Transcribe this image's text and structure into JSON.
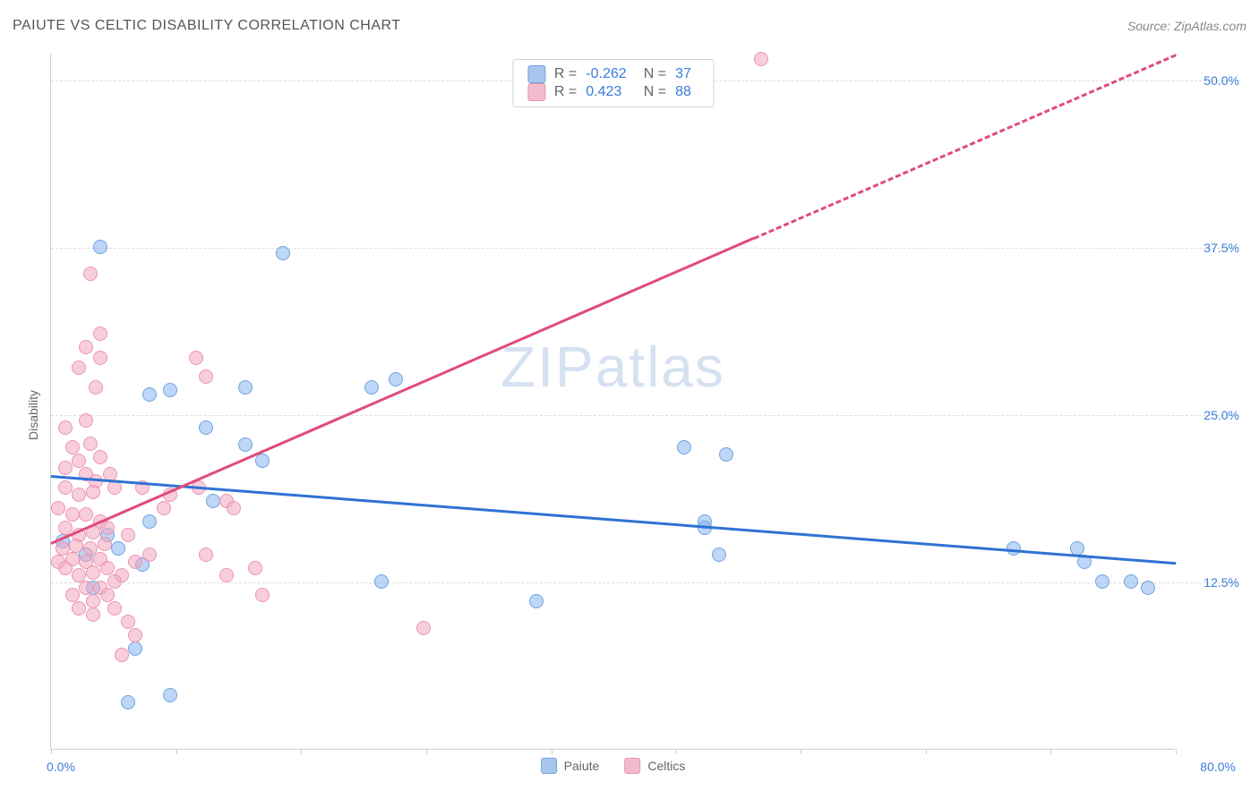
{
  "title": "PAIUTE VS CELTIC DISABILITY CORRELATION CHART",
  "source": "Source: ZipAtlas.com",
  "ylabel": "Disability",
  "watermark_a": "ZIP",
  "watermark_b": "atlas",
  "chart": {
    "xlim": [
      0,
      80
    ],
    "ylim": [
      0,
      52
    ],
    "x_ticks": [
      0,
      8.9,
      17.8,
      26.7,
      35.6,
      44.4,
      53.3,
      62.2,
      71.1,
      80
    ],
    "x_min_label": "0.0%",
    "x_max_label": "80.0%",
    "y_ticks": [
      {
        "v": 12.5,
        "label": "12.5%"
      },
      {
        "v": 25.0,
        "label": "25.0%"
      },
      {
        "v": 37.5,
        "label": "37.5%"
      },
      {
        "v": 50.0,
        "label": "50.0%"
      }
    ],
    "grid_color": "#dddddd",
    "axis_color": "#cccccc",
    "background_color": "#ffffff"
  },
  "series": [
    {
      "name": "Paiute",
      "color_fill": "rgba(137,180,240,0.55)",
      "color_stroke": "#6fa3e0",
      "swatch_fill": "#a8c6ed",
      "swatch_stroke": "#6fa3e0",
      "marker_radius": 8,
      "stroke_width": 1.5,
      "r_value": "-0.262",
      "n_value": "37",
      "trend": {
        "x1": 0,
        "y1": 20.5,
        "x2": 80,
        "y2": 14.0,
        "color": "#2f72d4",
        "width": 3,
        "solid_until_x": 80
      },
      "points": [
        [
          3.5,
          37.5
        ],
        [
          16.5,
          37.0
        ],
        [
          7,
          26.5
        ],
        [
          8.5,
          26.8
        ],
        [
          13.8,
          27.0
        ],
        [
          13.8,
          22.7
        ],
        [
          11.0,
          24.0
        ],
        [
          22.8,
          27.0
        ],
        [
          15.0,
          21.5
        ],
        [
          7.0,
          17.0
        ],
        [
          11.5,
          18.5
        ],
        [
          2.5,
          14.5
        ],
        [
          4.0,
          16.0
        ],
        [
          4.8,
          15.0
        ],
        [
          0.8,
          15.5
        ],
        [
          6.5,
          13.8
        ],
        [
          3.0,
          12.0
        ],
        [
          6.0,
          7.5
        ],
        [
          8.5,
          4.0
        ],
        [
          5.5,
          3.5
        ],
        [
          23.5,
          12.5
        ],
        [
          24.5,
          27.6
        ],
        [
          34.5,
          11.0
        ],
        [
          45.0,
          22.5
        ],
        [
          46.5,
          17.0
        ],
        [
          46.5,
          16.5
        ],
        [
          47.5,
          14.5
        ],
        [
          48.0,
          22.0
        ],
        [
          68.5,
          15.0
        ],
        [
          73.0,
          15.0
        ],
        [
          73.5,
          14.0
        ],
        [
          74.8,
          12.5
        ],
        [
          76.8,
          12.5
        ],
        [
          78.0,
          12.0
        ]
      ]
    },
    {
      "name": "Celtics",
      "color_fill": "rgba(244,166,189,0.55)",
      "color_stroke": "#e995b2",
      "swatch_fill": "#f3bccc",
      "swatch_stroke": "#e995b2",
      "marker_radius": 8,
      "stroke_width": 1.5,
      "r_value": "0.423",
      "n_value": "88",
      "trend": {
        "x1": 0,
        "y1": 15.5,
        "x2": 80,
        "y2": 52.0,
        "color": "#e14a7a",
        "width": 3,
        "solid_until_x": 50
      },
      "points": [
        [
          2.8,
          35.5
        ],
        [
          3.5,
          31.0
        ],
        [
          2.5,
          30.0
        ],
        [
          3.5,
          29.2
        ],
        [
          10.3,
          29.2
        ],
        [
          2.0,
          28.5
        ],
        [
          3.2,
          27.0
        ],
        [
          11.0,
          27.8
        ],
        [
          2.5,
          24.5
        ],
        [
          1.0,
          24.0
        ],
        [
          1.5,
          22.5
        ],
        [
          2.8,
          22.8
        ],
        [
          1.0,
          21.0
        ],
        [
          2.0,
          21.5
        ],
        [
          3.5,
          21.8
        ],
        [
          2.5,
          20.5
        ],
        [
          3.2,
          20.0
        ],
        [
          4.2,
          20.5
        ],
        [
          1.0,
          19.5
        ],
        [
          2.0,
          19.0
        ],
        [
          3.0,
          19.2
        ],
        [
          4.5,
          19.5
        ],
        [
          6.5,
          19.5
        ],
        [
          8.0,
          18.0
        ],
        [
          8.5,
          19.0
        ],
        [
          12.5,
          18.5
        ],
        [
          10.5,
          19.5
        ],
        [
          13.0,
          18.0
        ],
        [
          0.5,
          18.0
        ],
        [
          1.5,
          17.5
        ],
        [
          2.5,
          17.5
        ],
        [
          3.5,
          17.0
        ],
        [
          1.0,
          16.5
        ],
        [
          2.0,
          16.0
        ],
        [
          3.0,
          16.2
        ],
        [
          4.0,
          16.5
        ],
        [
          0.8,
          15.0
        ],
        [
          1.8,
          15.2
        ],
        [
          2.8,
          15.0
        ],
        [
          3.8,
          15.3
        ],
        [
          5.5,
          16.0
        ],
        [
          7.0,
          14.5
        ],
        [
          0.5,
          14.0
        ],
        [
          1.5,
          14.2
        ],
        [
          2.5,
          14.0
        ],
        [
          3.5,
          14.2
        ],
        [
          1.0,
          13.5
        ],
        [
          2.0,
          13.0
        ],
        [
          3.0,
          13.2
        ],
        [
          4.0,
          13.5
        ],
        [
          5.0,
          13.0
        ],
        [
          6.0,
          14.0
        ],
        [
          11.0,
          14.5
        ],
        [
          12.5,
          13.0
        ],
        [
          14.5,
          13.5
        ],
        [
          15.0,
          11.5
        ],
        [
          2.5,
          12.0
        ],
        [
          3.5,
          12.0
        ],
        [
          4.5,
          12.5
        ],
        [
          1.5,
          11.5
        ],
        [
          3.0,
          11.0
        ],
        [
          4.0,
          11.5
        ],
        [
          2.0,
          10.5
        ],
        [
          3.0,
          10.0
        ],
        [
          4.5,
          10.5
        ],
        [
          5.5,
          9.5
        ],
        [
          6.0,
          8.5
        ],
        [
          5.0,
          7.0
        ],
        [
          26.5,
          9.0
        ],
        [
          50.5,
          51.5
        ]
      ]
    }
  ],
  "bottom_legend": [
    {
      "label": "Paiute",
      "series": 0
    },
    {
      "label": "Celtics",
      "series": 1
    }
  ]
}
